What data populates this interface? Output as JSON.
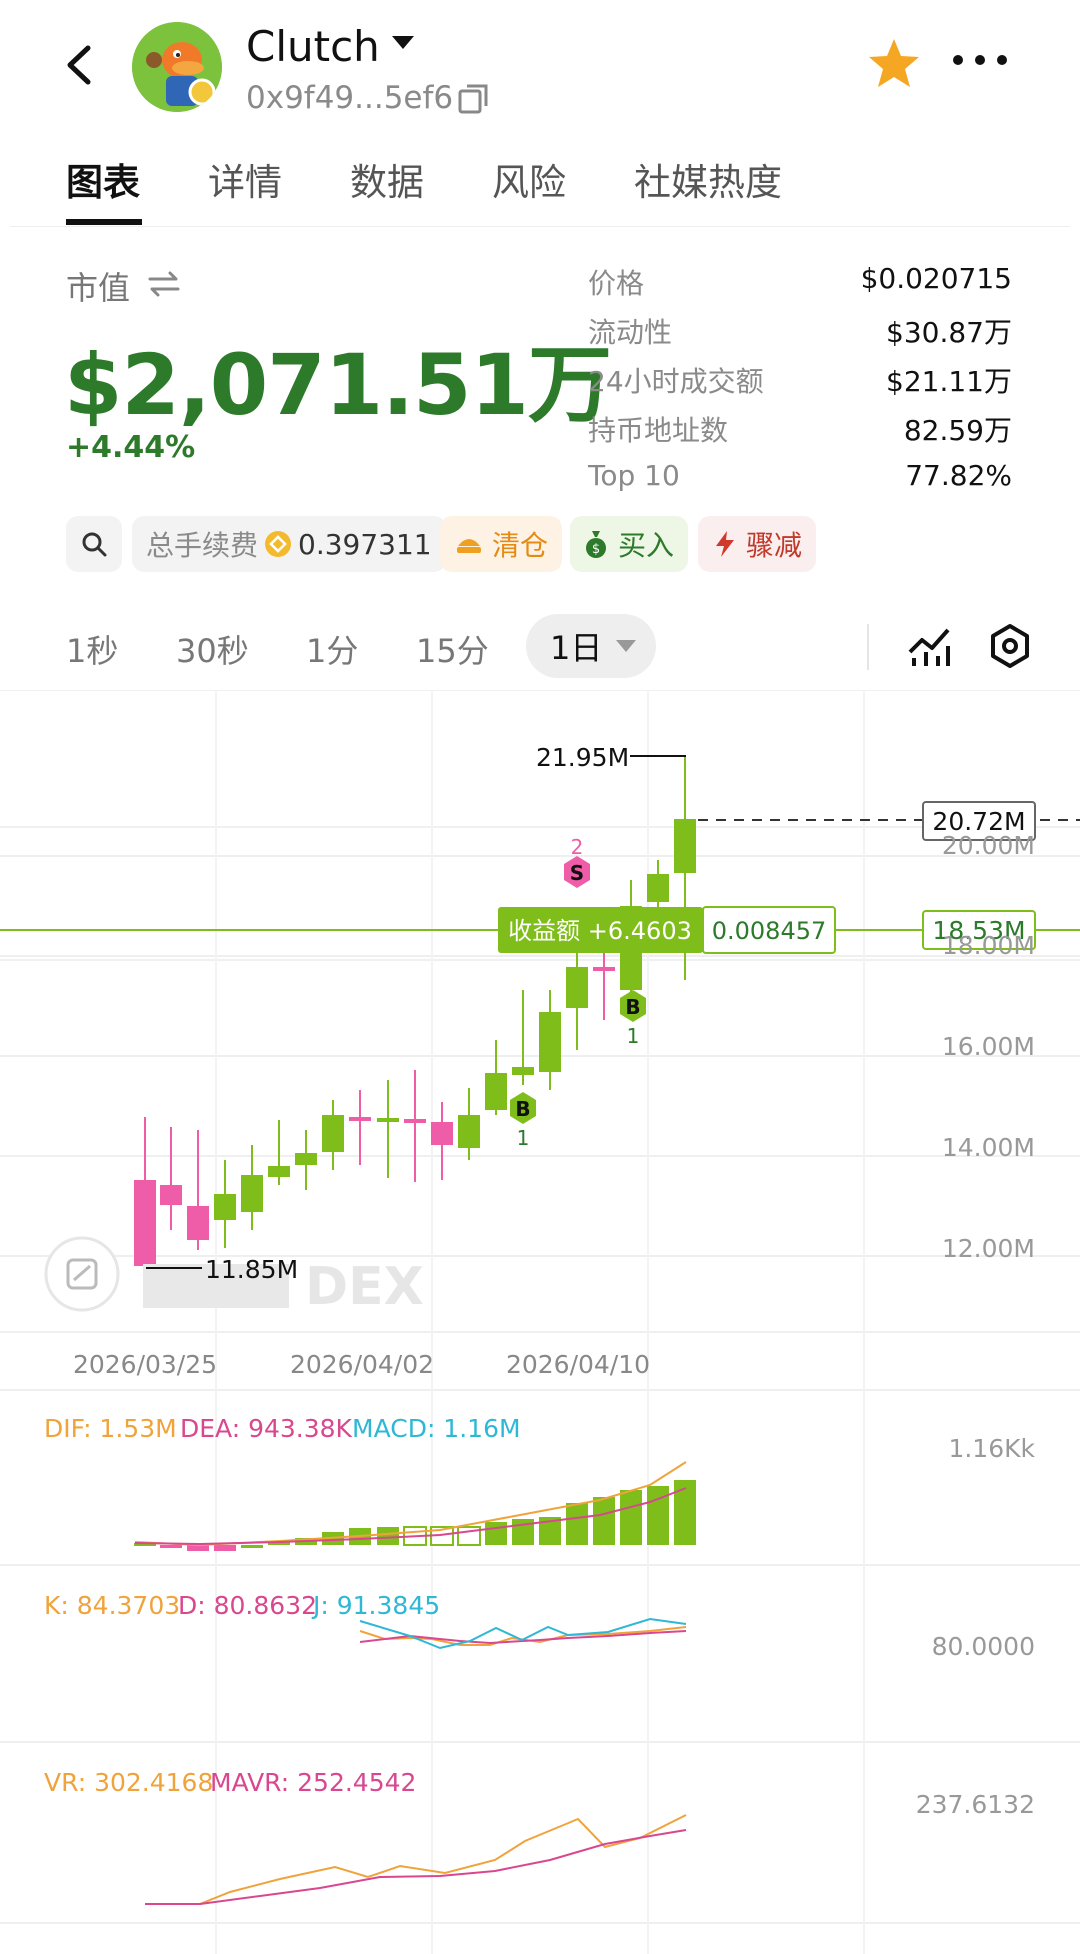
{
  "header": {
    "token_name": "Clutch",
    "address": "0x9f49...5ef6"
  },
  "tabs": [
    "图表",
    "详情",
    "数据",
    "风险",
    "社媒热度"
  ],
  "market_cap": {
    "label": "市值",
    "value": "$2,071.51万",
    "change": "+4.44%"
  },
  "stats": [
    {
      "label": "价格",
      "value": "$0.020715"
    },
    {
      "label": "流动性",
      "value": "$30.87万"
    },
    {
      "label": "24小时成交额",
      "value": "$21.11万"
    },
    {
      "label": "持币地址数",
      "value": "82.59万"
    },
    {
      "label": "Top 10",
      "value": "77.82%"
    }
  ],
  "actions": {
    "fee_label": "总手续费",
    "fee_value": "0.397311",
    "clear": "清仓",
    "buy": "买入",
    "reduce": "骤减"
  },
  "timeframes": [
    "1秒",
    "30秒",
    "1分",
    "15分"
  ],
  "timeframe_active": "1日",
  "colors": {
    "up": "#7fbd1a",
    "down": "#ef5da8",
    "accent_green": "#2c7a2a",
    "star": "#f5a623"
  },
  "chart_data": {
    "type": "candlestick",
    "x_labels": [
      "2026/03/25",
      "2026/04/02",
      "2026/04/10"
    ],
    "y_ticks": [
      "20.00M",
      "18.00M",
      "16.00M",
      "14.00M",
      "12.00M"
    ],
    "high_label": "21.95M",
    "low_label": "11.85M",
    "current_label": "20.72M",
    "cost_label": "18.53M",
    "pnl_label": "收益额 +6.4603",
    "pnl_value": "0.008457",
    "watermark": "DEX",
    "markers": [
      {
        "type": "B",
        "count": "1"
      },
      {
        "type": "S",
        "count": "2"
      },
      {
        "type": "B",
        "count": "1"
      }
    ],
    "macd": {
      "dif": "DIF: 1.53M",
      "dea": "DEA: 943.38K",
      "macd": "MACD: 1.16M",
      "axis": "1.16Kk"
    },
    "kdj": {
      "k": "K: 84.3703",
      "d": "D: 80.8632",
      "j": "J: 91.3845",
      "axis": "80.0000"
    },
    "vr": {
      "vr": "VR: 302.4168",
      "mavr": "MAVR: 252.4542",
      "axis": "237.6132"
    }
  }
}
